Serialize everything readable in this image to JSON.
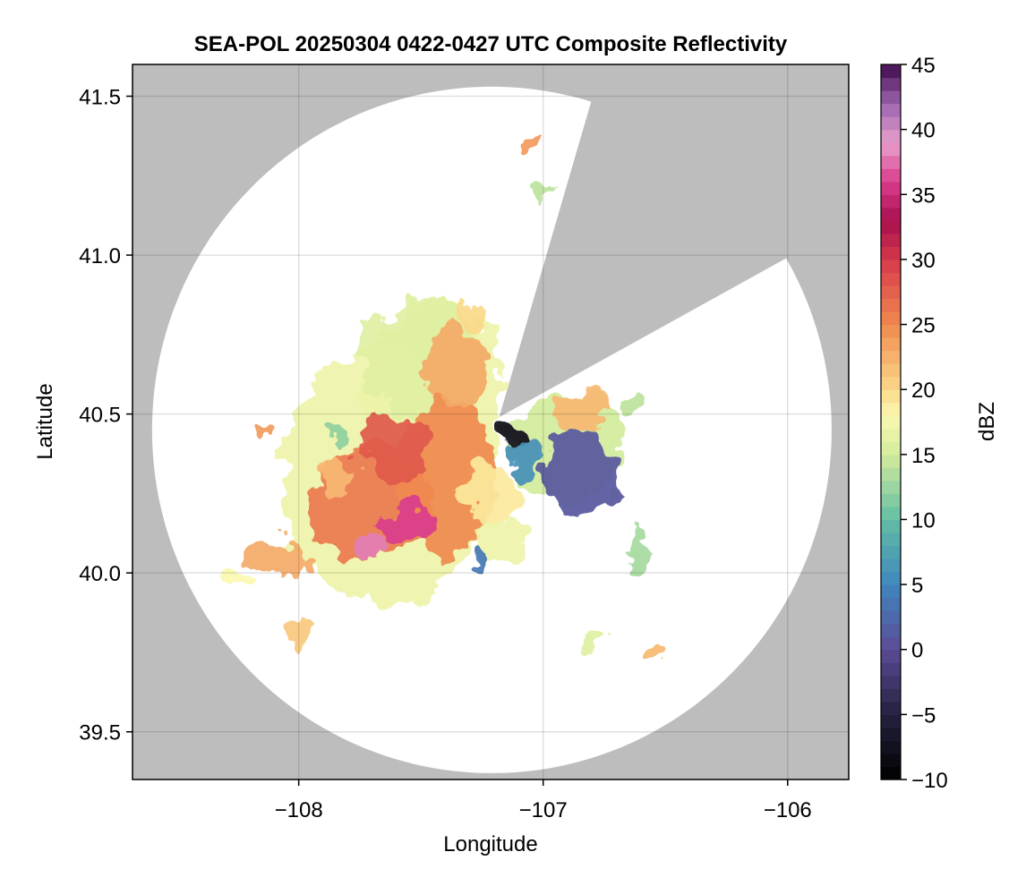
{
  "chart_data": {
    "type": "heatmap",
    "title": "SEA-POL 20250304 0422-0427 UTC Composite Reflectivity",
    "xlabel": "Longitude",
    "ylabel": "Latitude",
    "xlim": [
      -108.68,
      -105.75
    ],
    "ylim": [
      39.35,
      41.6
    ],
    "x_ticks": [
      -108,
      -107,
      -106
    ],
    "x_tick_labels": [
      "−108",
      "−107",
      "−106"
    ],
    "y_ticks": [
      39.5,
      40.0,
      40.5,
      41.0,
      41.5
    ],
    "y_tick_labels": [
      "39.5",
      "40.0",
      "40.5",
      "41.0",
      "41.5"
    ],
    "grid": true,
    "background_color": "#bdbdbd",
    "no_echo_color": "#ffffff",
    "radar_center": {
      "lon": -107.18,
      "lat": 40.49
    },
    "radar_range_extent": {
      "west_lon": -108.6,
      "north_lat": 41.53,
      "south_lat": 39.37,
      "east_lon": -105.82
    },
    "blocked_sectors_deg_from_north": [
      [
        17,
        60
      ]
    ],
    "colorbar": {
      "label": "dBZ",
      "min": -10,
      "max": 45,
      "step": 1,
      "ticks": [
        -10,
        -5,
        0,
        5,
        10,
        15,
        20,
        25,
        30,
        35,
        40,
        45
      ],
      "tick_labels": [
        "−10",
        "−5",
        "0",
        "5",
        "10",
        "15",
        "20",
        "25",
        "30",
        "35",
        "40",
        "45"
      ],
      "colormap": "Spectral_r",
      "stops": [
        {
          "v": -10,
          "c": "#000000"
        },
        {
          "v": -5,
          "c": "#24213f"
        },
        {
          "v": 0,
          "c": "#5c4b96"
        },
        {
          "v": 5,
          "c": "#3f86bd"
        },
        {
          "v": 10,
          "c": "#63bea5"
        },
        {
          "v": 15,
          "c": "#d3ec9c"
        },
        {
          "v": 18,
          "c": "#fbf8b0"
        },
        {
          "v": 20,
          "c": "#fbd98a"
        },
        {
          "v": 25,
          "c": "#f08a4f"
        },
        {
          "v": 30,
          "c": "#d6394a"
        },
        {
          "v": 33,
          "c": "#a80f4f"
        },
        {
          "v": 36,
          "c": "#d93d8d"
        },
        {
          "v": 39,
          "c": "#e89fcc"
        },
        {
          "v": 42,
          "c": "#9c64ae"
        },
        {
          "v": 45,
          "c": "#3f0a4d"
        }
      ]
    },
    "echoes": [
      {
        "lon": -107.65,
        "lat": 40.3,
        "rx": 0.42,
        "ry": 0.4,
        "dbz": 17
      },
      {
        "lon": -107.45,
        "lat": 40.55,
        "rx": 0.3,
        "ry": 0.3,
        "dbz": 17
      },
      {
        "lon": -107.5,
        "lat": 40.68,
        "rx": 0.25,
        "ry": 0.18,
        "dbz": 16
      },
      {
        "lon": -107.7,
        "lat": 40.22,
        "rx": 0.25,
        "ry": 0.18,
        "dbz": 26
      },
      {
        "lon": -107.4,
        "lat": 40.3,
        "rx": 0.2,
        "ry": 0.25,
        "dbz": 25
      },
      {
        "lon": -107.6,
        "lat": 40.4,
        "rx": 0.15,
        "ry": 0.1,
        "dbz": 28
      },
      {
        "lon": -107.35,
        "lat": 40.65,
        "rx": 0.14,
        "ry": 0.12,
        "dbz": 23
      },
      {
        "lon": -107.55,
        "lat": 40.15,
        "rx": 0.1,
        "ry": 0.06,
        "dbz": 36
      },
      {
        "lon": -107.7,
        "lat": 40.08,
        "rx": 0.09,
        "ry": 0.04,
        "dbz": 38
      },
      {
        "lon": -107.85,
        "lat": 40.3,
        "rx": 0.08,
        "ry": 0.06,
        "dbz": 22
      },
      {
        "lon": -107.22,
        "lat": 40.25,
        "rx": 0.12,
        "ry": 0.1,
        "dbz": 19
      },
      {
        "lon": -107.18,
        "lat": 40.1,
        "rx": 0.1,
        "ry": 0.08,
        "dbz": 17
      },
      {
        "lon": -106.9,
        "lat": 40.4,
        "rx": 0.24,
        "ry": 0.18,
        "dbz": 15
      },
      {
        "lon": -106.85,
        "lat": 40.32,
        "rx": 0.16,
        "ry": 0.14,
        "dbz": 1
      },
      {
        "lon": -106.85,
        "lat": 40.52,
        "rx": 0.12,
        "ry": 0.06,
        "dbz": 22
      },
      {
        "lon": -107.12,
        "lat": 40.43,
        "rx": 0.04,
        "ry": 0.05,
        "dbz": -8
      },
      {
        "lon": -107.08,
        "lat": 40.36,
        "rx": 0.06,
        "ry": 0.05,
        "dbz": 6
      },
      {
        "lon": -108.08,
        "lat": 40.05,
        "rx": 0.12,
        "ry": 0.06,
        "dbz": 23
      },
      {
        "lon": -108.0,
        "lat": 39.82,
        "rx": 0.05,
        "ry": 0.04,
        "dbz": 21
      },
      {
        "lon": -108.25,
        "lat": 39.98,
        "rx": 0.04,
        "ry": 0.03,
        "dbz": 18
      },
      {
        "lon": -106.6,
        "lat": 40.05,
        "rx": 0.05,
        "ry": 0.08,
        "dbz": 13
      },
      {
        "lon": -106.53,
        "lat": 39.75,
        "rx": 0.04,
        "ry": 0.04,
        "dbz": 22
      },
      {
        "lon": -106.8,
        "lat": 39.8,
        "rx": 0.05,
        "ry": 0.03,
        "dbz": 16
      },
      {
        "lon": -107.05,
        "lat": 41.35,
        "rx": 0.03,
        "ry": 0.02,
        "dbz": 24
      },
      {
        "lon": -107.3,
        "lat": 40.82,
        "rx": 0.06,
        "ry": 0.05,
        "dbz": 20
      },
      {
        "lon": -108.15,
        "lat": 40.45,
        "rx": 0.02,
        "ry": 0.02,
        "dbz": 24
      },
      {
        "lon": -107.85,
        "lat": 40.45,
        "rx": 0.02,
        "ry": 0.04,
        "dbz": 12
      },
      {
        "lon": -107.0,
        "lat": 41.2,
        "rx": 0.03,
        "ry": 0.04,
        "dbz": 14
      },
      {
        "lon": -106.65,
        "lat": 40.55,
        "rx": 0.05,
        "ry": 0.04,
        "dbz": 14
      },
      {
        "lon": -107.25,
        "lat": 40.05,
        "rx": 0.03,
        "ry": 0.02,
        "dbz": 4
      }
    ]
  }
}
